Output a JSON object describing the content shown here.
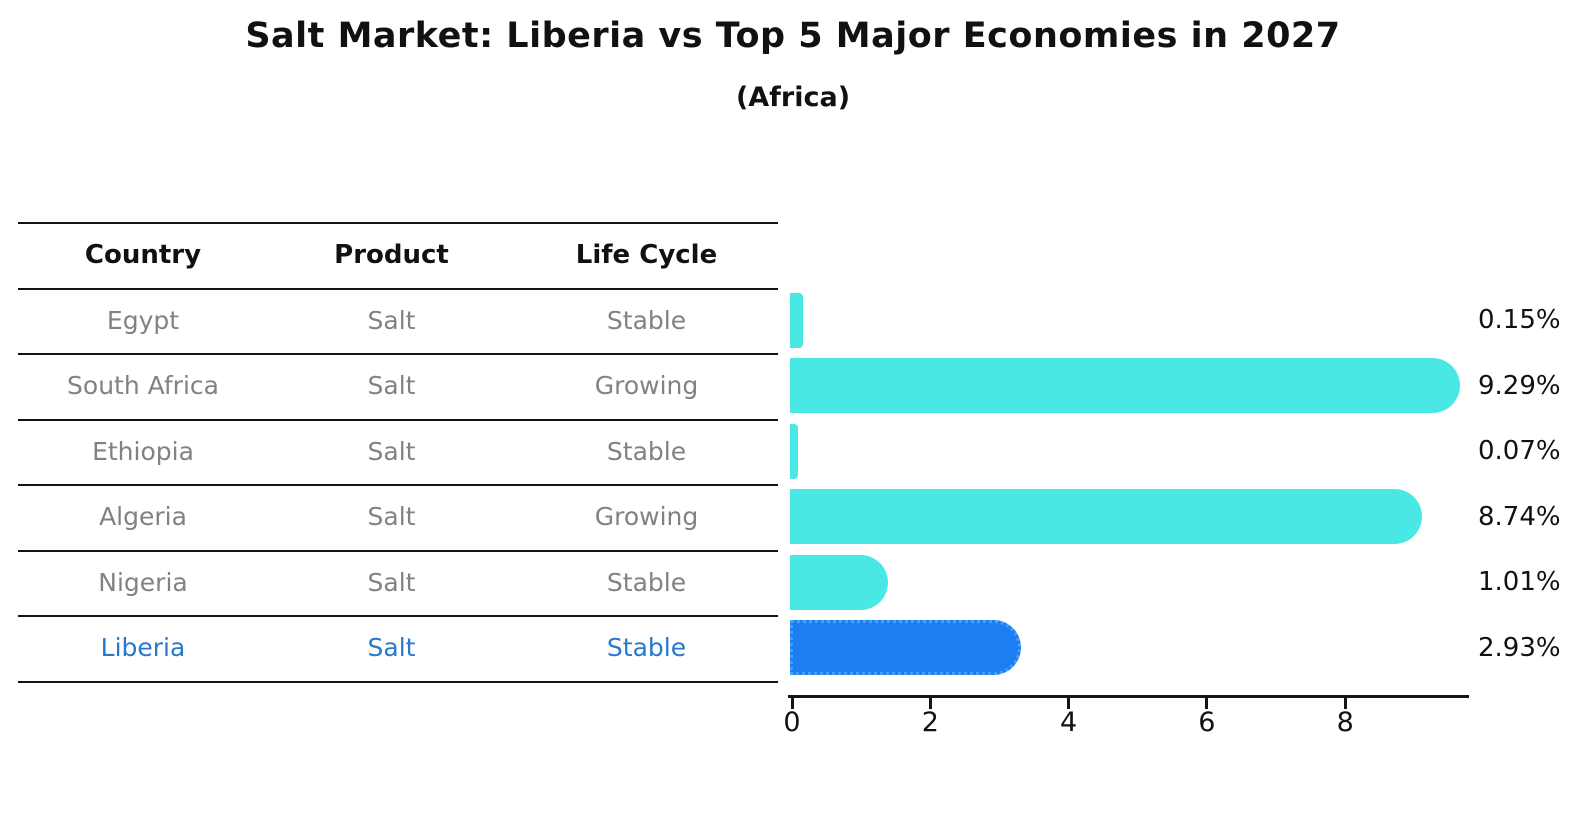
{
  "title": "Salt Market: Liberia vs Top 5 Major Economies in 2027",
  "subtitle": "(Africa)",
  "table": {
    "headers": [
      "Country",
      "Product",
      "Life Cycle"
    ],
    "rows": [
      {
        "country": "Egypt",
        "product": "Salt",
        "life_cycle": "Stable",
        "highlight": false
      },
      {
        "country": "South Africa",
        "product": "Salt",
        "life_cycle": "Growing",
        "highlight": false
      },
      {
        "country": "Ethiopia",
        "product": "Salt",
        "life_cycle": "Stable",
        "highlight": false
      },
      {
        "country": "Algeria",
        "product": "Salt",
        "life_cycle": "Growing",
        "highlight": false
      },
      {
        "country": "Nigeria",
        "product": "Salt",
        "life_cycle": "Stable",
        "highlight": false
      },
      {
        "country": "Liberia",
        "product": "Salt",
        "life_cycle": "Stable",
        "highlight": true
      }
    ]
  },
  "chart_data": {
    "type": "bar",
    "orientation": "horizontal",
    "title": "Salt Market: Liberia vs Top 5 Major Economies in 2027",
    "subtitle": "(Africa)",
    "categories": [
      "Egypt",
      "South Africa",
      "Ethiopia",
      "Algeria",
      "Nigeria",
      "Liberia"
    ],
    "values": [
      0.15,
      9.29,
      0.07,
      8.74,
      1.01,
      2.93
    ],
    "value_labels": [
      "0.15%",
      "9.29%",
      "0.07%",
      "8.74%",
      "1.01%",
      "2.93%"
    ],
    "unit": "%",
    "x_ticks": [
      0,
      2,
      4,
      6,
      8
    ],
    "xlim": [
      0,
      9.8
    ],
    "grid": false,
    "legend": false,
    "highlight_category": "Liberia",
    "colors": {
      "bar": "#4ae8e4",
      "highlight_bar": "#1b7ff2",
      "highlight_text": "#2679ce",
      "row_text": "#828282",
      "axis": "#141414",
      "label_text": "#111111"
    }
  }
}
